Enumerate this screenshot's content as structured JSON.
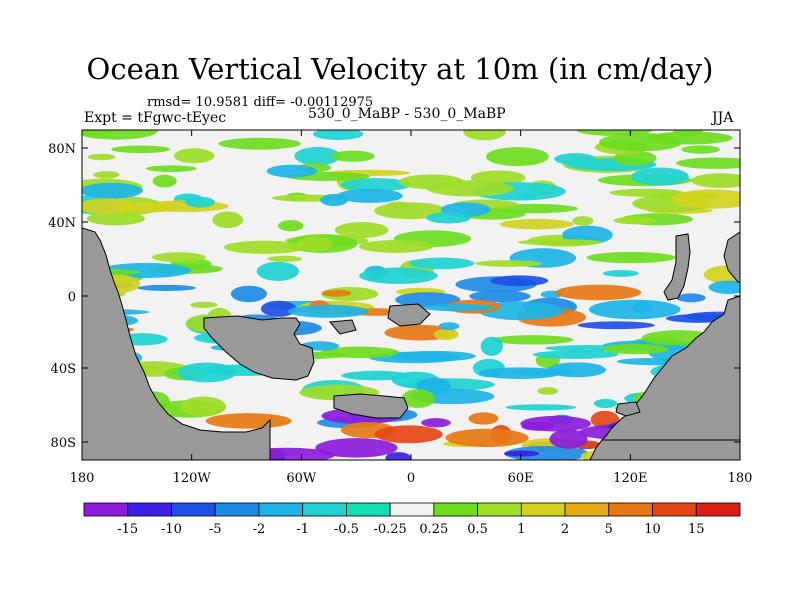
{
  "figure": {
    "title": "Ocean Vertical Velocity at 10m (in cm/day)",
    "stats": "rmsd= 10.9581 diff= -0.00112975",
    "experiment": "Expt = tFgwc-tEyec",
    "center_label": "530_0_MaBP - 530_0_MaBP",
    "season": "JJA"
  },
  "axes": {
    "y_ticks": [
      "80N",
      "40N",
      "0",
      "40S",
      "80S"
    ],
    "x_ticks": [
      "180",
      "120W",
      "60W",
      "0",
      "60E",
      "120E",
      "180"
    ]
  },
  "colorbar": {
    "labels": [
      "-15",
      "-10",
      "-5",
      "-2",
      "-1",
      "-0.5",
      "-0.25",
      "0.25",
      "0.5",
      "1",
      "2",
      "5",
      "10",
      "15"
    ],
    "colors": [
      "#8c1cdc",
      "#3c1ee6",
      "#1e50e6",
      "#1e8ce6",
      "#1eb4e6",
      "#1ed2d2",
      "#14dcb4",
      "#f2f2f2",
      "#6edc1e",
      "#a0dc28",
      "#d2d21e",
      "#e6aa14",
      "#e67814",
      "#e64614",
      "#dc1e14"
    ]
  },
  "colors": {
    "land": "#999999",
    "background": "#ffffff"
  }
}
